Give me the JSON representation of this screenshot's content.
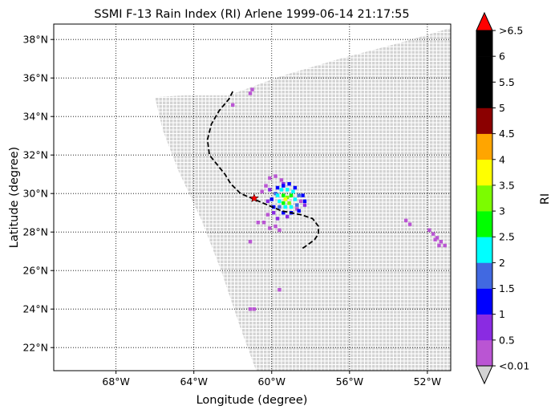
{
  "chart_data": {
    "type": "scatter",
    "title": "SSMI F-13 Rain Index (RI) Arlene 1999-06-14 21:17:55",
    "xlabel": "Longitude (degree)",
    "ylabel": "Latitude (degree)",
    "xlim": [
      -71.2,
      -50.8
    ],
    "ylim": [
      20.8,
      38.8
    ],
    "grid": true,
    "x_ticks": [
      {
        "value": -68,
        "label": "68°W"
      },
      {
        "value": -64,
        "label": "64°W"
      },
      {
        "value": -60,
        "label": "60°W"
      },
      {
        "value": -56,
        "label": "56°W"
      },
      {
        "value": -52,
        "label": "52°W"
      }
    ],
    "y_ticks": [
      {
        "value": 22,
        "label": "22°N"
      },
      {
        "value": 24,
        "label": "24°N"
      },
      {
        "value": 26,
        "label": "26°N"
      },
      {
        "value": 28,
        "label": "28°N"
      },
      {
        "value": 30,
        "label": "30°N"
      },
      {
        "value": 32,
        "label": "32°N"
      },
      {
        "value": 34,
        "label": "34°N"
      },
      {
        "value": 36,
        "label": "36°N"
      },
      {
        "value": 38,
        "label": "38°N"
      }
    ],
    "swath_polygon": [
      [
        -62.2,
        35.1
      ],
      [
        -59.5,
        36.1
      ],
      [
        -56.5,
        37.0
      ],
      [
        -53.5,
        37.8
      ],
      [
        -50.8,
        38.6
      ],
      [
        -50.8,
        20.8
      ],
      [
        -60.8,
        20.8
      ],
      [
        -61.6,
        23.0
      ],
      [
        -62.6,
        26.0
      ],
      [
        -63.6,
        28.6
      ],
      [
        -64.8,
        31.2
      ],
      [
        -65.6,
        33.3
      ],
      [
        -66.0,
        35.0
      ],
      [
        -64.5,
        35.1
      ]
    ],
    "swath_color": "#d3d3d3",
    "track": [
      [
        -62.0,
        35.3
      ],
      [
        -62.2,
        34.9
      ],
      [
        -62.7,
        34.3
      ],
      [
        -63.1,
        33.6
      ],
      [
        -63.3,
        32.8
      ],
      [
        -63.2,
        32.0
      ],
      [
        -62.8,
        31.5
      ],
      [
        -62.4,
        31.0
      ],
      [
        -62.1,
        30.5
      ],
      [
        -61.6,
        30.0
      ],
      [
        -60.9,
        29.7
      ],
      [
        -60.2,
        29.4
      ],
      [
        -59.5,
        29.1
      ],
      [
        -58.5,
        28.9
      ],
      [
        -57.9,
        28.7
      ],
      [
        -57.6,
        28.3
      ],
      [
        -57.6,
        27.9
      ],
      [
        -57.8,
        27.6
      ],
      [
        -58.2,
        27.3
      ],
      [
        -58.5,
        27.1
      ]
    ],
    "storm_center": {
      "x": -60.9,
      "y": 29.75
    },
    "rain_points": [
      {
        "x": -62.0,
        "y": 34.6,
        "ri": 0.3
      },
      {
        "x": -61.0,
        "y": 35.4,
        "ri": 0.3
      },
      {
        "x": -61.1,
        "y": 35.2,
        "ri": 0.3
      },
      {
        "x": -60.7,
        "y": 28.5,
        "ri": 0.3
      },
      {
        "x": -60.4,
        "y": 28.5,
        "ri": 0.3
      },
      {
        "x": -61.1,
        "y": 27.5,
        "ri": 0.3
      },
      {
        "x": -59.6,
        "y": 25.0,
        "ri": 0.3
      },
      {
        "x": -60.9,
        "y": 24.0,
        "ri": 0.3
      },
      {
        "x": -61.1,
        "y": 24.0,
        "ri": 0.3
      },
      {
        "x": -60.3,
        "y": 30.4,
        "ri": 0.3
      },
      {
        "x": -60.5,
        "y": 30.1,
        "ri": 0.3
      },
      {
        "x": -60.1,
        "y": 30.8,
        "ri": 0.3
      },
      {
        "x": -59.8,
        "y": 30.9,
        "ri": 0.3
      },
      {
        "x": -59.5,
        "y": 30.7,
        "ri": 0.3
      },
      {
        "x": -60.2,
        "y": 28.9,
        "ri": 0.3
      },
      {
        "x": -59.8,
        "y": 28.3,
        "ri": 0.3
      },
      {
        "x": -59.6,
        "y": 28.1,
        "ri": 0.3
      },
      {
        "x": -60.1,
        "y": 28.2,
        "ri": 0.3
      },
      {
        "x": -58.7,
        "y": 29.2,
        "ri": 0.3
      },
      {
        "x": -58.5,
        "y": 29.6,
        "ri": 0.3
      },
      {
        "x": -53.1,
        "y": 28.6,
        "ri": 0.3
      },
      {
        "x": -52.9,
        "y": 28.4,
        "ri": 0.3
      },
      {
        "x": -51.9,
        "y": 28.1,
        "ri": 0.3
      },
      {
        "x": -51.7,
        "y": 27.9,
        "ri": 0.3
      },
      {
        "x": -51.5,
        "y": 27.7,
        "ri": 0.3
      },
      {
        "x": -51.3,
        "y": 27.5,
        "ri": 0.3
      },
      {
        "x": -51.1,
        "y": 27.3,
        "ri": 0.3
      },
      {
        "x": -51.6,
        "y": 27.6,
        "ri": 0.3
      },
      {
        "x": -51.4,
        "y": 27.3,
        "ri": 0.3
      },
      {
        "x": -60.1,
        "y": 30.2,
        "ri": 0.8
      },
      {
        "x": -59.9,
        "y": 29.0,
        "ri": 0.8
      },
      {
        "x": -59.7,
        "y": 28.7,
        "ri": 0.8
      },
      {
        "x": -59.2,
        "y": 28.8,
        "ri": 0.8
      },
      {
        "x": -58.3,
        "y": 29.4,
        "ri": 0.8
      },
      {
        "x": -60.2,
        "y": 29.6,
        "ri": 0.8
      },
      {
        "x": -59.4,
        "y": 30.5,
        "ri": 0.8
      },
      {
        "x": -59.7,
        "y": 30.3,
        "ri": 1.2
      },
      {
        "x": -59.4,
        "y": 30.4,
        "ri": 1.2
      },
      {
        "x": -59.1,
        "y": 30.5,
        "ri": 1.2
      },
      {
        "x": -58.8,
        "y": 30.3,
        "ri": 1.2
      },
      {
        "x": -58.4,
        "y": 29.9,
        "ri": 1.2
      },
      {
        "x": -58.3,
        "y": 29.6,
        "ri": 1.2
      },
      {
        "x": -58.6,
        "y": 29.1,
        "ri": 1.2
      },
      {
        "x": -59.0,
        "y": 29.0,
        "ri": 1.2
      },
      {
        "x": -59.4,
        "y": 29.0,
        "ri": 1.2
      },
      {
        "x": -59.9,
        "y": 29.3,
        "ri": 1.2
      },
      {
        "x": -60.0,
        "y": 29.7,
        "ri": 1.2
      },
      {
        "x": -59.8,
        "y": 30.0,
        "ri": 1.8
      },
      {
        "x": -58.6,
        "y": 29.9,
        "ri": 1.8
      },
      {
        "x": -58.7,
        "y": 29.4,
        "ri": 1.8
      },
      {
        "x": -59.6,
        "y": 29.3,
        "ri": 1.8
      },
      {
        "x": -59.5,
        "y": 30.2,
        "ri": 2.2
      },
      {
        "x": -59.2,
        "y": 30.2,
        "ri": 2.2
      },
      {
        "x": -58.9,
        "y": 30.1,
        "ri": 2.2
      },
      {
        "x": -58.8,
        "y": 29.7,
        "ri": 2.2
      },
      {
        "x": -59.0,
        "y": 29.3,
        "ri": 2.2
      },
      {
        "x": -59.3,
        "y": 29.3,
        "ri": 2.2
      },
      {
        "x": -59.6,
        "y": 29.6,
        "ri": 2.2
      },
      {
        "x": -59.7,
        "y": 29.9,
        "ri": 2.2
      },
      {
        "x": -59.4,
        "y": 29.9,
        "ri": 2.7
      },
      {
        "x": -59.0,
        "y": 29.9,
        "ri": 2.7
      },
      {
        "x": -59.4,
        "y": 29.5,
        "ri": 2.7
      },
      {
        "x": -59.2,
        "y": 29.8,
        "ri": 3.3
      },
      {
        "x": -59.1,
        "y": 29.5,
        "ri": 3.3
      },
      {
        "x": -59.3,
        "y": 29.7,
        "ri": 3.8
      }
    ]
  },
  "colorbar": {
    "label": "RI",
    "upper_extension": {
      "label": ">6.5",
      "color": "#ff0000"
    },
    "lower_extension": {
      "label": "<0.01",
      "color": "#d3d3d3"
    },
    "bins": [
      {
        "low": 0.01,
        "high": 0.5,
        "color": "#ba55d3"
      },
      {
        "low": 0.5,
        "high": 1,
        "color": "#8a2be2"
      },
      {
        "low": 1,
        "high": 1.5,
        "color": "#0000ff"
      },
      {
        "low": 1.5,
        "high": 2,
        "color": "#4169e1"
      },
      {
        "low": 2,
        "high": 2.5,
        "color": "#00ffff"
      },
      {
        "low": 2.5,
        "high": 3,
        "color": "#00ff00"
      },
      {
        "low": 3,
        "high": 3.5,
        "color": "#7cfc00"
      },
      {
        "low": 3.5,
        "high": 4,
        "color": "#ffff00"
      },
      {
        "low": 4,
        "high": 4.5,
        "color": "#ffa500"
      },
      {
        "low": 4.5,
        "high": 5,
        "color": "#8b0000"
      },
      {
        "low": 5,
        "high": 5.5,
        "color": "#000000"
      },
      {
        "low": 5.5,
        "high": 6,
        "color": "#000000"
      },
      {
        "low": 6,
        "high": 6.5,
        "color": "#000000"
      }
    ],
    "tick_labels": [
      "0.5",
      "1",
      "1.5",
      "2",
      "2.5",
      "3",
      "3.5",
      "4",
      "4.5",
      "5",
      "5.5",
      "6"
    ]
  }
}
